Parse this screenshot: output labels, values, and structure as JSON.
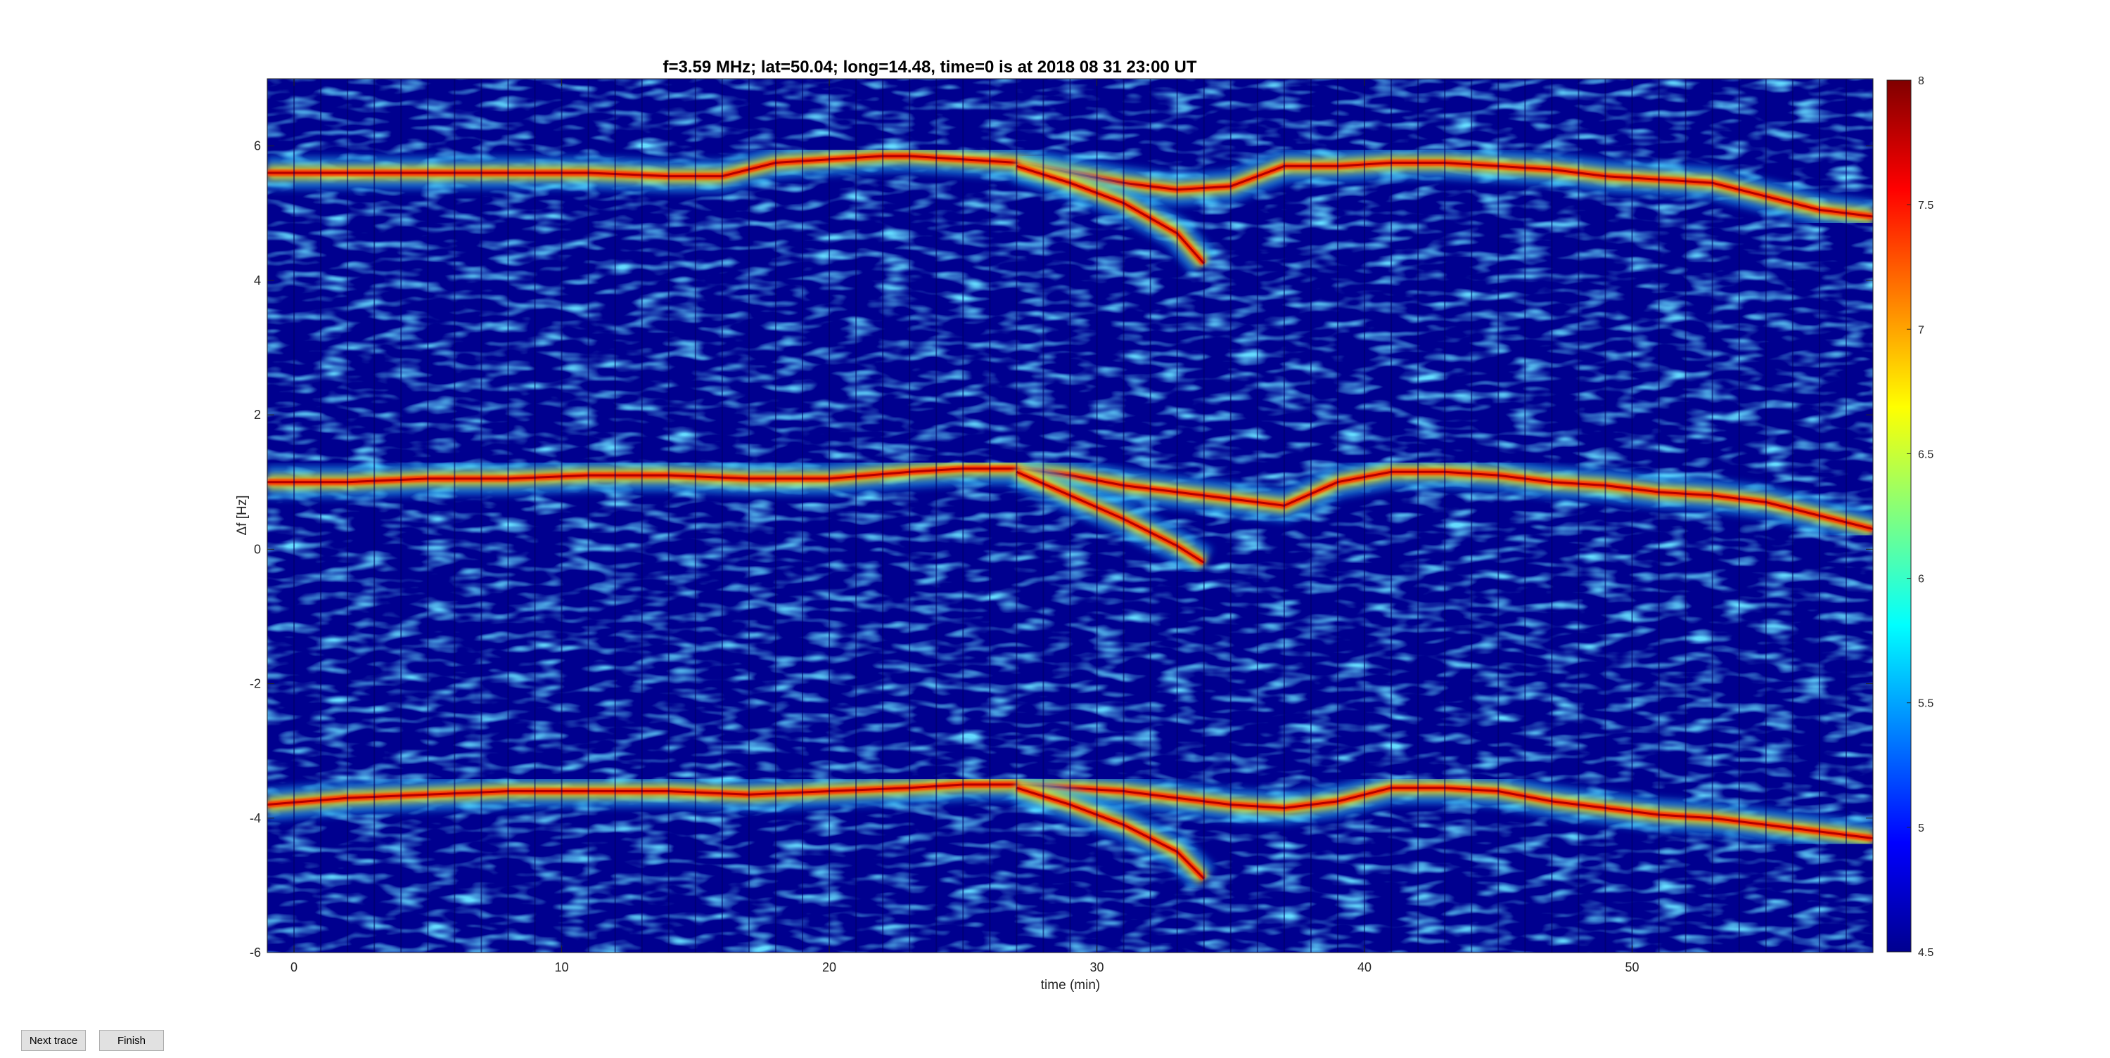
{
  "buttons": {
    "next_trace": "Next trace",
    "finish": "Finish"
  },
  "colors": {
    "background": "#00008f",
    "trace_core": "#b40000",
    "trace_edge": "#ff3300",
    "halo": "#ffe600",
    "speckle": "#22b8ff"
  },
  "chart_data": {
    "type": "heatmap",
    "title": "f=3.59 MHz;  lat=50.04; long=14.48, time=0 is at 2018 08 31 23:00 UT",
    "xlabel": "time (min)",
    "ylabel": "Δf [Hz]",
    "xlim": [
      -1,
      59
    ],
    "ylim": [
      -6,
      7
    ],
    "xticks": [
      0,
      10,
      20,
      30,
      40,
      50
    ],
    "yticks": [
      -6,
      -4,
      -2,
      0,
      2,
      4,
      6
    ],
    "colorbar": {
      "range": [
        4.5,
        8
      ],
      "ticks": [
        "4.5",
        "5",
        "5.5",
        "6",
        "6.5",
        "7",
        "7.5",
        "8"
      ],
      "colormap": "jet"
    },
    "segment_width_min": 1,
    "series": [
      {
        "x": [
          -1,
          2,
          5,
          8,
          11,
          14,
          16,
          18,
          20,
          22,
          23,
          25,
          27,
          29,
          31,
          33,
          35,
          37,
          39,
          41,
          43,
          45,
          47,
          49,
          51,
          53,
          55,
          57,
          59
        ],
        "y": [
          5.6,
          5.6,
          5.6,
          5.6,
          5.6,
          5.55,
          5.55,
          5.75,
          5.8,
          5.85,
          5.85,
          5.8,
          5.75,
          5.6,
          5.45,
          5.35,
          5.4,
          5.7,
          5.7,
          5.75,
          5.75,
          5.7,
          5.65,
          5.55,
          5.5,
          5.45,
          5.25,
          5.05,
          4.95
        ]
      },
      {
        "x": [
          -1,
          2,
          5,
          8,
          11,
          14,
          17,
          20,
          23,
          25,
          27,
          29,
          31,
          33,
          35,
          37,
          39,
          41,
          43,
          45,
          47,
          49,
          51,
          53,
          55,
          57,
          59
        ],
        "y": [
          1.0,
          1.0,
          1.05,
          1.05,
          1.1,
          1.1,
          1.05,
          1.05,
          1.15,
          1.2,
          1.2,
          1.1,
          0.95,
          0.85,
          0.75,
          0.65,
          1.0,
          1.15,
          1.15,
          1.1,
          1.0,
          0.95,
          0.85,
          0.8,
          0.7,
          0.5,
          0.3
        ]
      },
      {
        "x": [
          -1,
          2,
          5,
          8,
          11,
          14,
          17,
          20,
          23,
          25,
          27,
          29,
          31,
          33,
          35,
          37,
          39,
          41,
          43,
          45,
          47,
          49,
          51,
          53,
          55,
          57,
          59
        ],
        "y": [
          -3.8,
          -3.7,
          -3.65,
          -3.6,
          -3.6,
          -3.6,
          -3.65,
          -3.6,
          -3.55,
          -3.5,
          -3.5,
          -3.55,
          -3.6,
          -3.7,
          -3.8,
          -3.85,
          -3.75,
          -3.55,
          -3.55,
          -3.6,
          -3.75,
          -3.85,
          -3.95,
          -4.0,
          -4.1,
          -4.2,
          -4.3
        ]
      },
      {
        "x": [
          27,
          29,
          31,
          33,
          34
        ],
        "y": [
          5.7,
          5.45,
          5.15,
          4.7,
          4.25
        ]
      },
      {
        "x": [
          27,
          29,
          31,
          33,
          34
        ],
        "y": [
          1.15,
          0.8,
          0.45,
          0.05,
          -0.2
        ]
      },
      {
        "x": [
          27,
          29,
          31,
          33,
          34
        ],
        "y": [
          -3.55,
          -3.8,
          -4.1,
          -4.5,
          -4.9
        ]
      }
    ]
  }
}
